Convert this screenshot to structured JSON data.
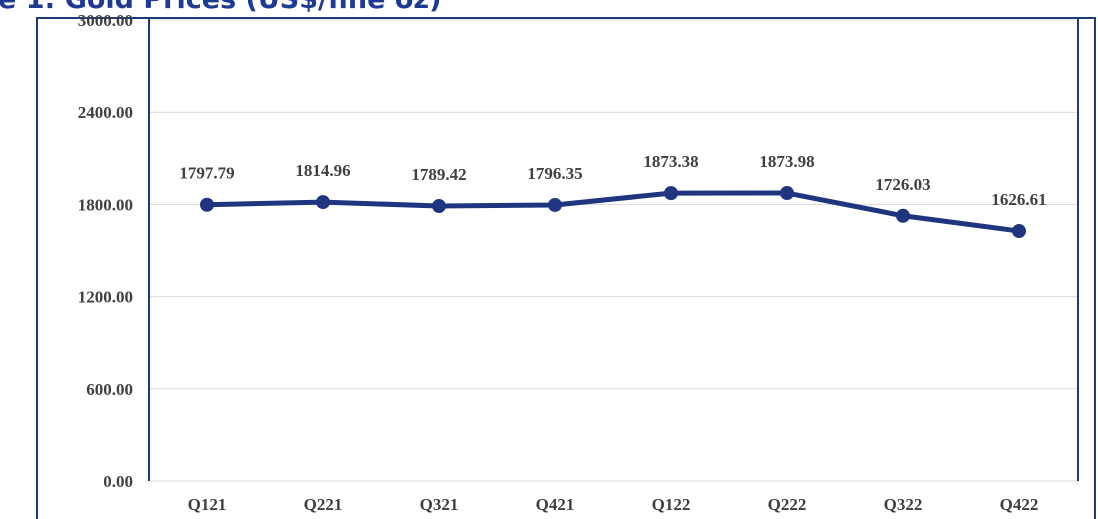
{
  "chart_data": {
    "type": "line",
    "title": "e 1: Gold Prices (US$/fine oz)",
    "categories": [
      "Q121",
      "Q221",
      "Q321",
      "Q421",
      "Q122",
      "Q222",
      "Q322",
      "Q422"
    ],
    "series": [
      {
        "name": "Gold Price",
        "color": "#1f3580",
        "values": [
          1797.79,
          1814.96,
          1789.42,
          1796.35,
          1873.38,
          1873.98,
          1726.03,
          1626.61
        ]
      }
    ],
    "ylim": [
      0,
      3000
    ],
    "yticks": [
      {
        "value": 0,
        "label": "0.00"
      },
      {
        "value": 600,
        "label": "600.00"
      },
      {
        "value": 1200,
        "label": "1200.00"
      },
      {
        "value": 1800,
        "label": "1800.00"
      },
      {
        "value": 2400,
        "label": "2400.00"
      },
      {
        "value": 3000,
        "label": "3000.00"
      }
    ],
    "grid": true
  }
}
